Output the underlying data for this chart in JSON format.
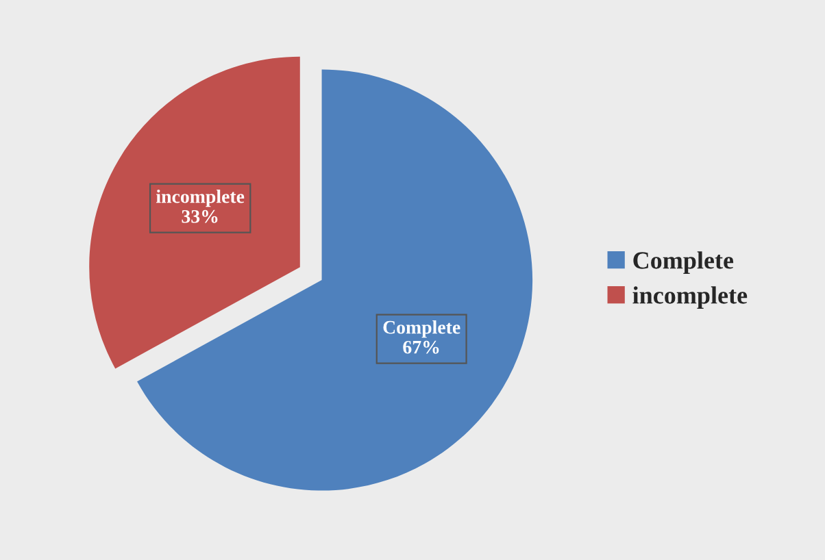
{
  "chart_data": {
    "type": "pie",
    "categories": [
      "Complete",
      "incomplete"
    ],
    "values": [
      67,
      33
    ],
    "colors": [
      "#4f81bd",
      "#c0504d"
    ],
    "value_labels": [
      "67%",
      "33%"
    ],
    "legend": "right"
  }
}
